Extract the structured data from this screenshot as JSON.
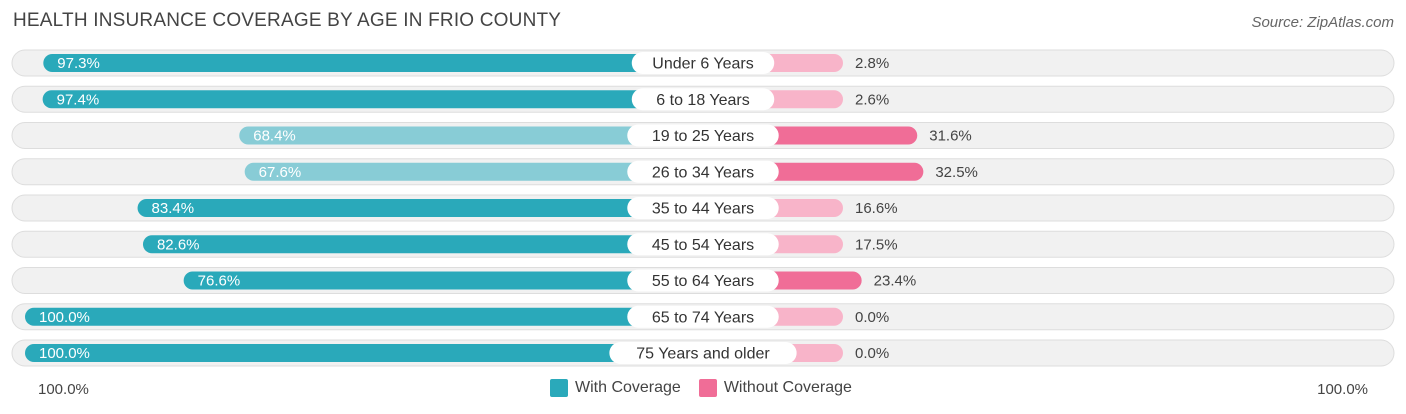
{
  "title": "HEALTH INSURANCE COVERAGE BY AGE IN FRIO COUNTY",
  "source": "Source: ZipAtlas.com",
  "colors": {
    "with_strong": "#2aa9ba",
    "with_light": "#88ccd6",
    "without_strong": "#f06d97",
    "without_light": "#f8b4c9",
    "row_bg": "#f1f1f1",
    "row_border": "#dddddd"
  },
  "axis": {
    "left_label": "100.0%",
    "right_label": "100.0%"
  },
  "legend": [
    {
      "label": "With Coverage",
      "color": "#2aa9ba"
    },
    {
      "label": "Without Coverage",
      "color": "#f06d97"
    }
  ],
  "chart_data": {
    "type": "bar",
    "orientation": "horizontal-diverging",
    "title": "HEALTH INSURANCE COVERAGE BY AGE IN FRIO COUNTY",
    "categories": [
      "Under 6 Years",
      "6 to 18 Years",
      "19 to 25 Years",
      "26 to 34 Years",
      "35 to 44 Years",
      "45 to 54 Years",
      "55 to 64 Years",
      "65 to 74 Years",
      "75 Years and older"
    ],
    "series": [
      {
        "name": "With Coverage",
        "values": [
          97.3,
          97.4,
          68.4,
          67.6,
          83.4,
          82.6,
          76.6,
          100.0,
          100.0
        ],
        "labels": [
          "97.3%",
          "97.4%",
          "68.4%",
          "67.6%",
          "83.4%",
          "82.6%",
          "76.6%",
          "100.0%",
          "100.0%"
        ]
      },
      {
        "name": "Without Coverage",
        "values": [
          2.8,
          2.6,
          31.6,
          32.5,
          16.6,
          17.5,
          23.4,
          0.0,
          0.0
        ],
        "labels": [
          "2.8%",
          "2.6%",
          "31.6%",
          "32.5%",
          "16.6%",
          "17.5%",
          "23.4%",
          "0.0%",
          "0.0%"
        ]
      }
    ],
    "xlim": [
      0,
      100
    ],
    "legend_position": "bottom-center"
  }
}
